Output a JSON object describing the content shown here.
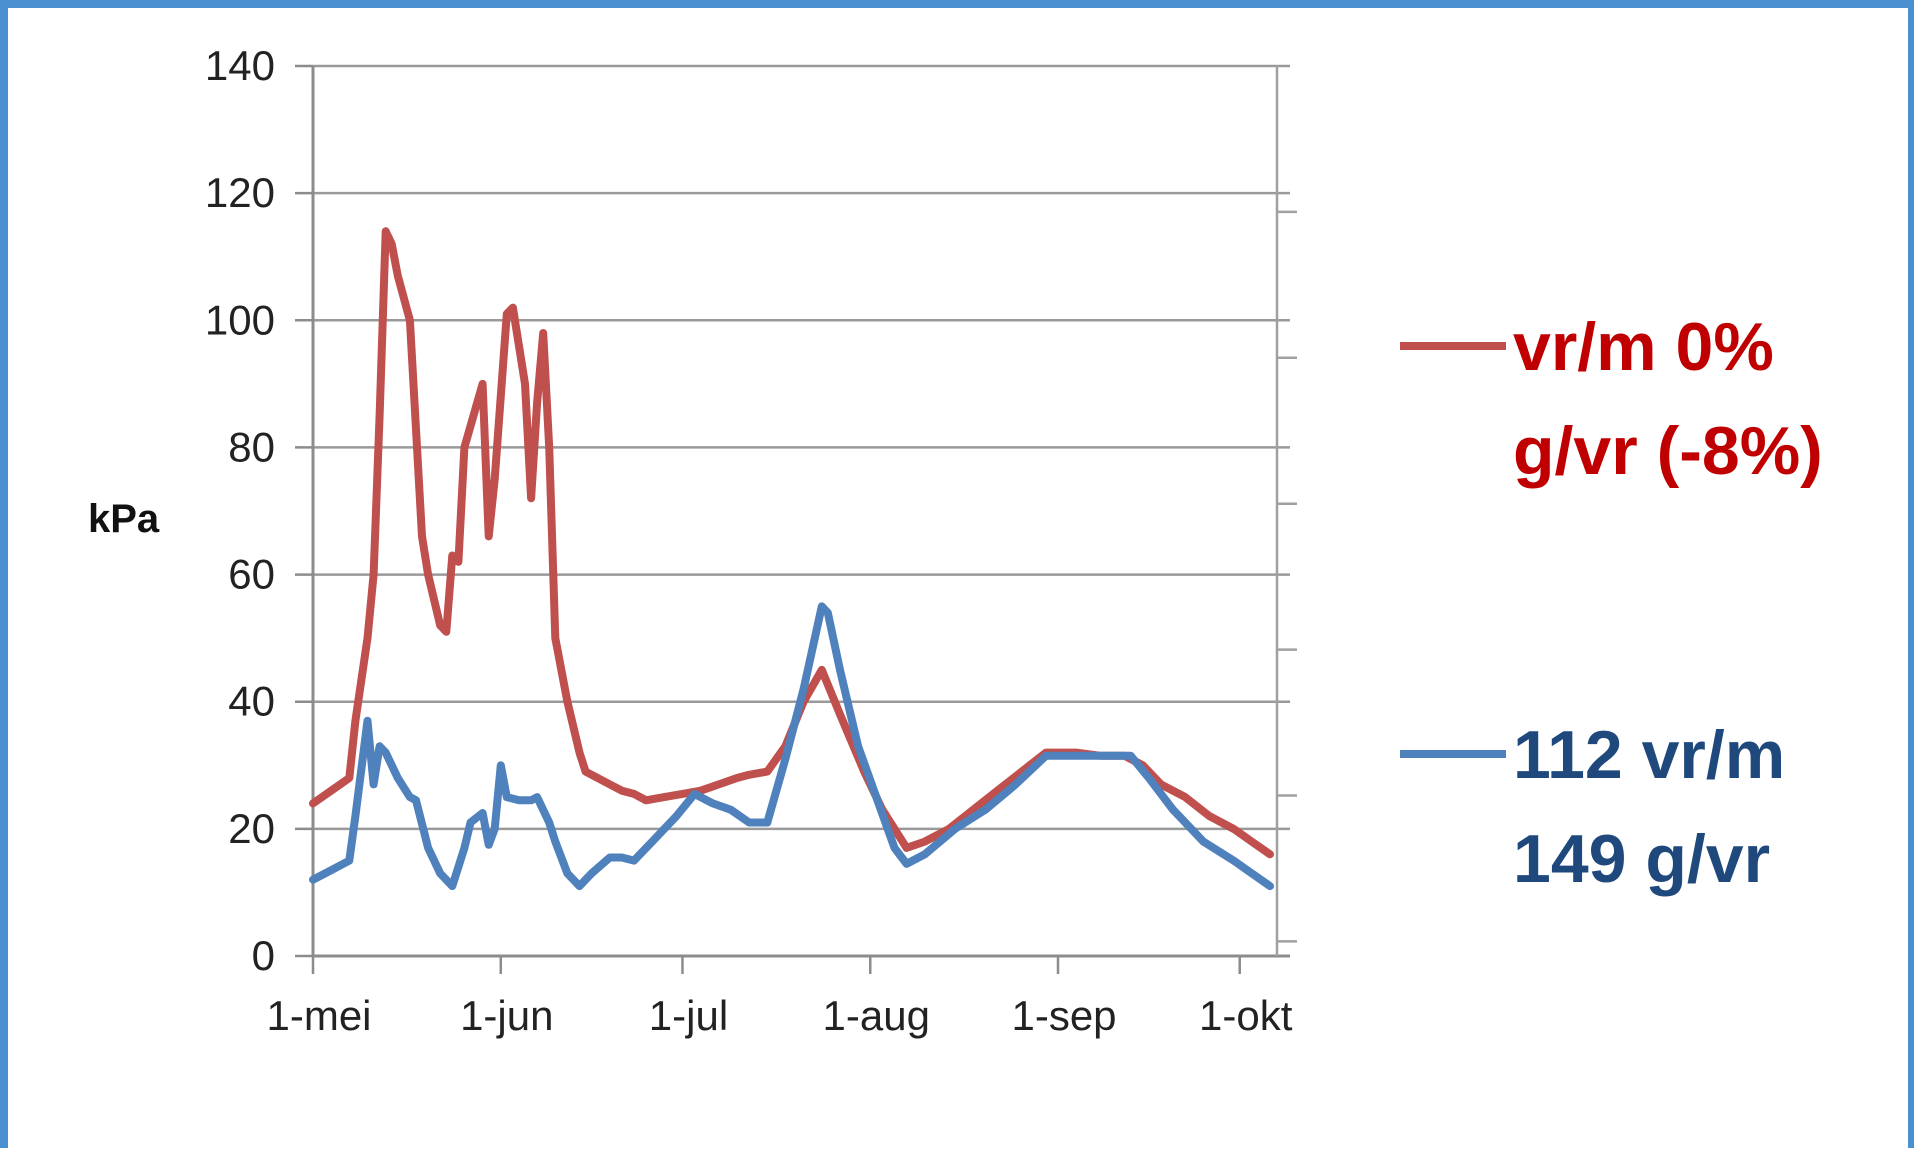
{
  "chart_data": {
    "type": "line",
    "ylabel": "kPa",
    "ylim": [
      0,
      140
    ],
    "yticks": [
      0,
      20,
      40,
      60,
      80,
      100,
      120,
      140
    ],
    "xlim": [
      "1-mei",
      "6-okt"
    ],
    "xticks": [
      {
        "date": "05-01",
        "label": "1-mei"
      },
      {
        "date": "06-01",
        "label": "1-jun"
      },
      {
        "date": "07-01",
        "label": "1-jul"
      },
      {
        "date": "08-01",
        "label": "1-aug"
      },
      {
        "date": "09-01",
        "label": "1-sep"
      },
      {
        "date": "10-01",
        "label": "1-okt"
      }
    ],
    "grid": true,
    "legend_position": "right",
    "series": [
      {
        "legend_lines": [
          "vr/m 0%",
          "g/vr (-8%)"
        ],
        "line_color": "#c0504d",
        "text_color": "#c00000",
        "points": [
          [
            "05-01",
            24
          ],
          [
            "05-04",
            26
          ],
          [
            "05-07",
            28
          ],
          [
            "05-08",
            37
          ],
          [
            "05-10",
            50
          ],
          [
            "05-11",
            60
          ],
          [
            "05-12",
            85
          ],
          [
            "05-13",
            114
          ],
          [
            "05-14",
            112
          ],
          [
            "05-15",
            107
          ],
          [
            "05-17",
            100
          ],
          [
            "05-19",
            66
          ],
          [
            "05-20",
            60
          ],
          [
            "05-22",
            52
          ],
          [
            "05-23",
            51
          ],
          [
            "05-24",
            63
          ],
          [
            "05-25",
            62
          ],
          [
            "05-26",
            80
          ],
          [
            "05-29",
            90
          ],
          [
            "05-30",
            66
          ],
          [
            "05-31",
            75
          ],
          [
            "06-02",
            101
          ],
          [
            "06-03",
            102
          ],
          [
            "06-05",
            90
          ],
          [
            "06-06",
            72
          ],
          [
            "06-07",
            87
          ],
          [
            "06-08",
            98
          ],
          [
            "06-09",
            80
          ],
          [
            "06-10",
            50
          ],
          [
            "06-12",
            40
          ],
          [
            "06-14",
            32
          ],
          [
            "06-15",
            29
          ],
          [
            "06-17",
            28
          ],
          [
            "06-19",
            27
          ],
          [
            "06-21",
            26
          ],
          [
            "06-23",
            25.5
          ],
          [
            "06-25",
            24.5
          ],
          [
            "06-28",
            25
          ],
          [
            "07-01",
            25.5
          ],
          [
            "07-04",
            26
          ],
          [
            "07-07",
            27
          ],
          [
            "07-10",
            28
          ],
          [
            "07-12",
            28.5
          ],
          [
            "07-15",
            29
          ],
          [
            "07-18",
            33
          ],
          [
            "07-21",
            40
          ],
          [
            "07-24",
            45
          ],
          [
            "07-27",
            38
          ],
          [
            "07-31",
            29
          ],
          [
            "08-03",
            23
          ],
          [
            "08-07",
            17
          ],
          [
            "08-10",
            18
          ],
          [
            "08-14",
            20
          ],
          [
            "08-18",
            23
          ],
          [
            "08-22",
            26
          ],
          [
            "08-26",
            29
          ],
          [
            "08-30",
            32
          ],
          [
            "09-04",
            32
          ],
          [
            "09-08",
            31.5
          ],
          [
            "09-12",
            31.5
          ],
          [
            "09-15",
            30
          ],
          [
            "09-18",
            27
          ],
          [
            "09-22",
            25
          ],
          [
            "09-26",
            22
          ],
          [
            "09-30",
            20
          ],
          [
            "10-03",
            18
          ],
          [
            "10-06",
            16
          ]
        ]
      },
      {
        "legend_lines": [
          "112 vr/m",
          "149 g/vr"
        ],
        "line_color": "#4f81bd",
        "text_color": "#1f497d",
        "points": [
          [
            "05-01",
            12
          ],
          [
            "05-04",
            13.5
          ],
          [
            "05-07",
            15
          ],
          [
            "05-08",
            22
          ],
          [
            "05-10",
            37
          ],
          [
            "05-11",
            27
          ],
          [
            "05-12",
            33
          ],
          [
            "05-13",
            32
          ],
          [
            "05-15",
            28
          ],
          [
            "05-17",
            25
          ],
          [
            "05-18",
            24.5
          ],
          [
            "05-20",
            17
          ],
          [
            "05-22",
            13
          ],
          [
            "05-24",
            11
          ],
          [
            "05-26",
            17
          ],
          [
            "05-27",
            21
          ],
          [
            "05-29",
            22.5
          ],
          [
            "05-30",
            17.5
          ],
          [
            "05-31",
            20
          ],
          [
            "06-01",
            30
          ],
          [
            "06-02",
            25
          ],
          [
            "06-04",
            24.5
          ],
          [
            "06-06",
            24.5
          ],
          [
            "06-07",
            25
          ],
          [
            "06-09",
            21
          ],
          [
            "06-10",
            18
          ],
          [
            "06-12",
            13
          ],
          [
            "06-14",
            11
          ],
          [
            "06-16",
            13
          ],
          [
            "06-19",
            15.5
          ],
          [
            "06-21",
            15.5
          ],
          [
            "06-23",
            15
          ],
          [
            "06-26",
            18
          ],
          [
            "06-30",
            22
          ],
          [
            "07-03",
            25.5
          ],
          [
            "07-06",
            24
          ],
          [
            "07-09",
            23
          ],
          [
            "07-12",
            21
          ],
          [
            "07-15",
            21
          ],
          [
            "07-18",
            31
          ],
          [
            "07-21",
            42
          ],
          [
            "07-24",
            55
          ],
          [
            "07-25",
            54
          ],
          [
            "07-27",
            45
          ],
          [
            "07-30",
            33
          ],
          [
            "08-02",
            25
          ],
          [
            "08-05",
            17
          ],
          [
            "08-07",
            14.5
          ],
          [
            "08-10",
            16
          ],
          [
            "08-15",
            20
          ],
          [
            "08-20",
            23
          ],
          [
            "08-25",
            27
          ],
          [
            "08-30",
            31.5
          ],
          [
            "09-05",
            31.5
          ],
          [
            "09-10",
            31.5
          ],
          [
            "09-13",
            31.5
          ],
          [
            "09-16",
            28
          ],
          [
            "09-20",
            23
          ],
          [
            "09-25",
            18
          ],
          [
            "09-30",
            15
          ],
          [
            "10-03",
            13
          ],
          [
            "10-06",
            11
          ]
        ]
      }
    ]
  }
}
